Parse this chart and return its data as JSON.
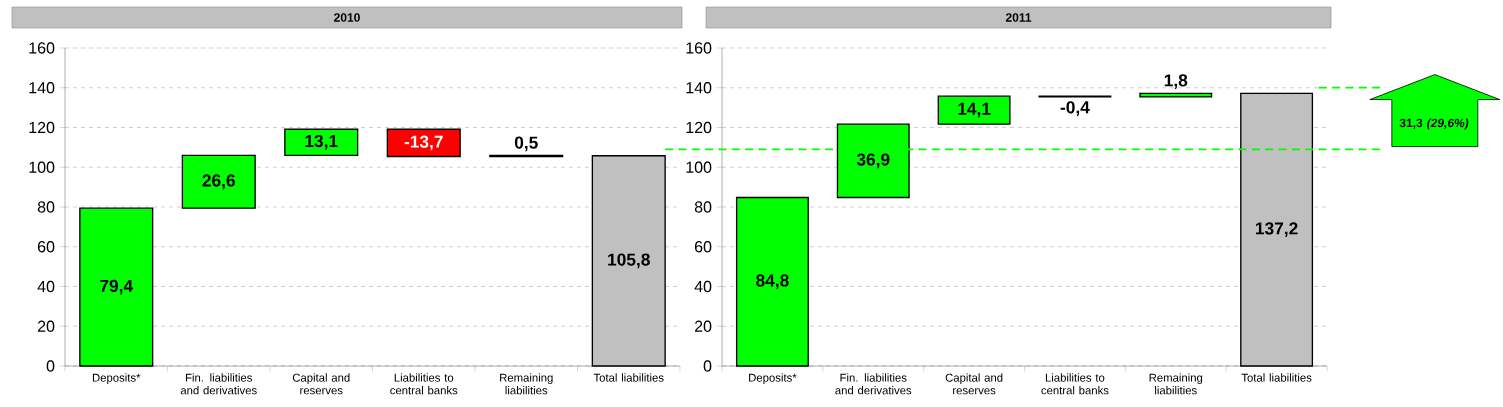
{
  "chart_data": [
    {
      "type": "bar",
      "title": "2010",
      "categories": [
        "Deposits*",
        "Fin. liabilities and derivatives",
        "Capital and reserves",
        "Liabilities to central banks",
        "Remaining liabilities",
        "Total liabilities"
      ],
      "values": [
        79.4,
        26.6,
        13.1,
        -13.7,
        0.5,
        105.8
      ],
      "base": [
        0,
        79.4,
        106,
        119.1,
        105.4,
        0
      ],
      "colors": [
        "#00ff00",
        "#00ff00",
        "#00ff00",
        "#ff0000",
        "#00ff00",
        "#c0c0c0"
      ],
      "value_labels": [
        "79,4",
        "26,6",
        "13,1",
        "-13,7",
        "0,5",
        "105,8"
      ],
      "ylim": [
        0,
        160
      ],
      "yticks": [
        0,
        20,
        40,
        60,
        80,
        100,
        120,
        140,
        160
      ],
      "grid": "y"
    },
    {
      "type": "bar",
      "title": "2011",
      "categories": [
        "Deposits*",
        "Fin. liabilities and derivatives",
        "Capital and reserves",
        "Liabilities to central banks",
        "Remaining liabilities",
        "Total liabilities"
      ],
      "values": [
        84.8,
        36.9,
        14.1,
        -0.4,
        1.8,
        137.2
      ],
      "base": [
        0,
        84.8,
        121.7,
        135.8,
        135.4,
        0
      ],
      "colors": [
        "#00ff00",
        "#00ff00",
        "#00ff00",
        "#00ff00",
        "#00ff00",
        "#c0c0c0"
      ],
      "value_labels": [
        "84,8",
        "36,9",
        "14,1",
        "-0,4",
        "1,8",
        "137,2"
      ],
      "ylim": [
        0,
        160
      ],
      "yticks": [
        0,
        20,
        40,
        60,
        80,
        100,
        120,
        140,
        160
      ],
      "grid": "y",
      "ref_lines": [
        {
          "axis": "y",
          "value": 109,
          "color": "#00ff00",
          "line_style": "dashed"
        }
      ],
      "annotations": [
        "31,3 *(29,6%)*"
      ]
    }
  ]
}
